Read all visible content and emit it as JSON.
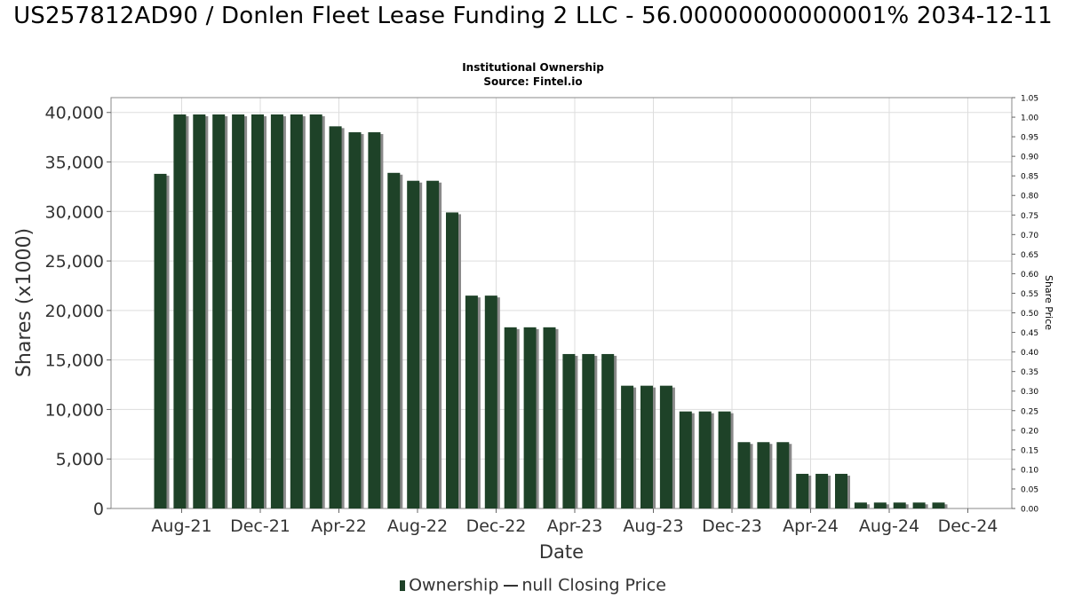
{
  "title": "US257812AD90 / Donlen Fleet Lease Funding 2 LLC - 56.00000000000001% 2034-12-11",
  "subtitle_line1": "Institutional Ownership",
  "subtitle_line2": "Source: Fintel.io",
  "legend": {
    "ownership": "Ownership",
    "price": "null Closing Price"
  },
  "colors": {
    "bar": "#1e4228",
    "bar_shadow": "#8a8a8a",
    "grid": "#dddddd"
  },
  "chart_data": {
    "type": "bar",
    "xlabel": "Date",
    "ylabel": "Shares (x1000)",
    "y2label": "Share Price",
    "ylim": [
      0,
      41500
    ],
    "y2lim": [
      0,
      1.05
    ],
    "yticks": [
      0,
      5000,
      10000,
      15000,
      20000,
      25000,
      30000,
      35000,
      40000
    ],
    "ytick_labels": [
      "0",
      "5,000",
      "10,000",
      "15,000",
      "20,000",
      "25,000",
      "30,000",
      "35,000",
      "40,000"
    ],
    "y2tick_labels": [
      "0.00",
      "0.05",
      "0.10",
      "0.15",
      "0.20",
      "0.25",
      "0.30",
      "0.35",
      "0.40",
      "0.45",
      "0.50",
      "0.55",
      "0.60",
      "0.65",
      "0.70",
      "0.75",
      "0.80",
      "0.85",
      "0.90",
      "0.95",
      "1.00",
      "1.05"
    ],
    "xtick_labels": [
      "Aug-21",
      "Dec-21",
      "Apr-22",
      "Aug-22",
      "Dec-22",
      "Apr-23",
      "Aug-23",
      "Dec-23",
      "Apr-24",
      "Aug-24",
      "Dec-24"
    ],
    "grid": true,
    "legend_position": "bottom",
    "series": [
      {
        "name": "Ownership",
        "values": [
          33800,
          39800,
          39800,
          39800,
          39800,
          39800,
          39800,
          39800,
          39800,
          38600,
          38000,
          38000,
          33900,
          33100,
          33100,
          29900,
          21500,
          21500,
          18300,
          18300,
          18300,
          15600,
          15600,
          15600,
          12400,
          12400,
          12400,
          9800,
          9800,
          9800,
          6700,
          6700,
          6700,
          3500,
          3500,
          3500,
          600,
          600,
          600,
          600,
          600
        ]
      }
    ]
  }
}
